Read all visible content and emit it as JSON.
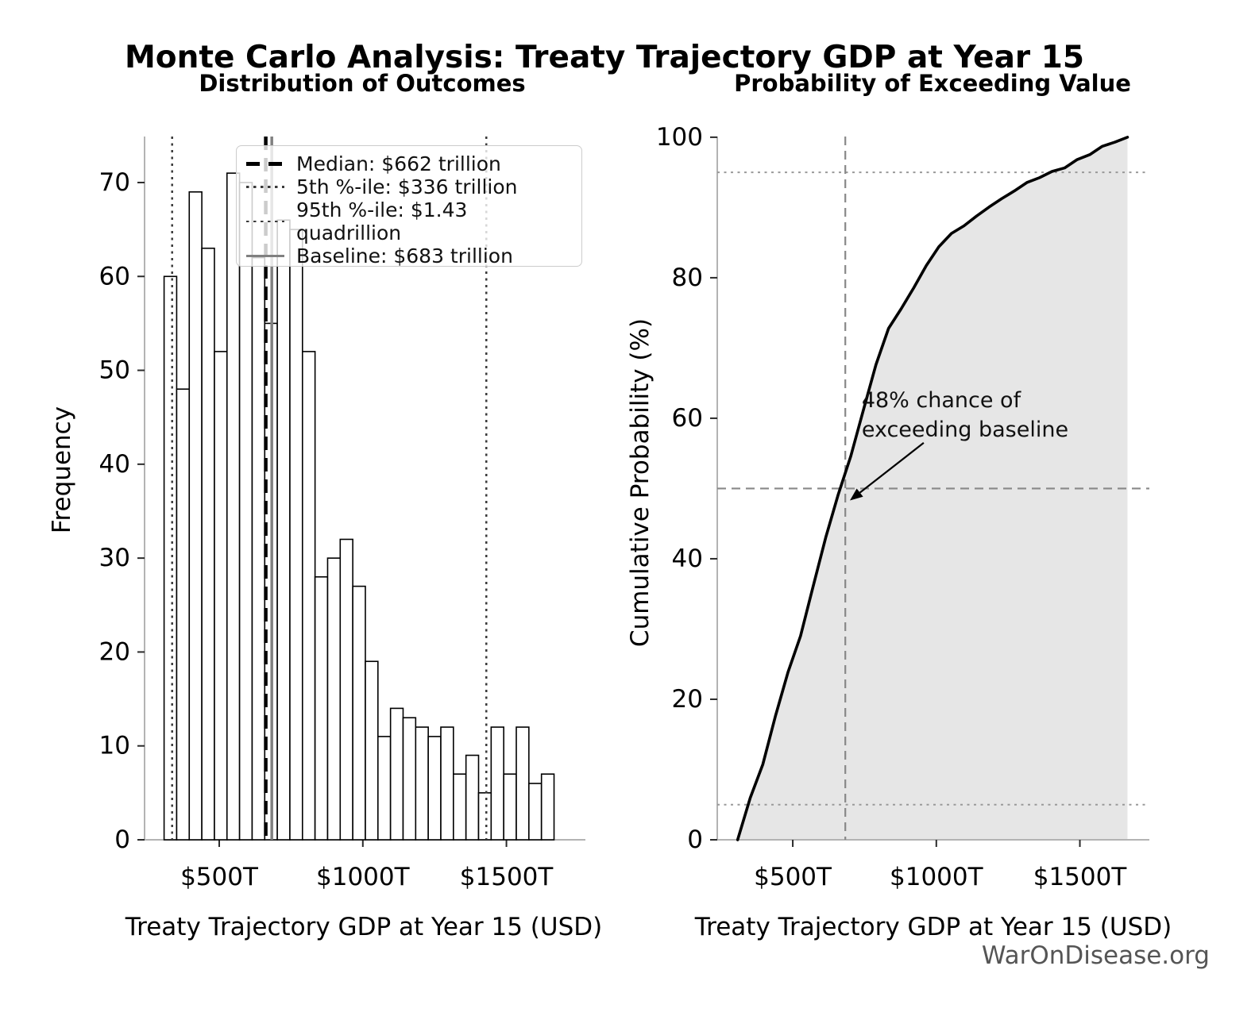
{
  "figure": {
    "title": "Monte Carlo Analysis: Treaty Trajectory GDP at Year 15",
    "watermark": "WarOnDisease.org",
    "background": "#ffffff"
  },
  "colors": {
    "bar_fill": "#ffffff",
    "bar_edge": "#000000",
    "spine": "#b3b3b3",
    "tick": "#2a2a2a",
    "curve": "#000000",
    "cdf_fill": "#e6e6e6",
    "dashed_guide": "#888888",
    "dotted_guide": "#999999",
    "dotted_dark": "#3a3a3a",
    "baseline_gray": "#808080",
    "watermark_text": "#555555"
  },
  "chart_data": [
    {
      "id": "histogram",
      "type": "bar",
      "title": "Distribution of Outcomes",
      "xlabel": "Treaty Trajectory GDP at Year 15 (USD)",
      "ylabel": "Frequency",
      "x_unit": "trillions of USD",
      "bin_start": 308,
      "bin_width": 43.8,
      "values": [
        60,
        48,
        69,
        63,
        52,
        71,
        70,
        62,
        55,
        66,
        65,
        52,
        28,
        30,
        32,
        27,
        19,
        11,
        14,
        13,
        12,
        11,
        12,
        7,
        9,
        5,
        12,
        7,
        12,
        6,
        7
      ],
      "xticks": [
        {
          "value": 500,
          "label": "$500T"
        },
        {
          "value": 1000,
          "label": "$1000T"
        },
        {
          "value": 1500,
          "label": "$1500T"
        }
      ],
      "yticks": [
        0,
        10,
        20,
        30,
        40,
        50,
        60,
        70
      ],
      "xlim": [
        240,
        1775
      ],
      "ylim": [
        0,
        74.9
      ],
      "grid": false,
      "legend_position": "upper center",
      "reference_lines": [
        {
          "name": "median",
          "value": 662,
          "style": "dashed",
          "color": "#000000",
          "width": 4.5,
          "label": "Median: $662 trillion"
        },
        {
          "name": "p5",
          "value": 336,
          "style": "dotted",
          "color": "#3a3a3a",
          "width": 2.5,
          "label": "5th %-ile: $336 trillion"
        },
        {
          "name": "p95",
          "value": 1430,
          "style": "dotted",
          "color": "#3a3a3a",
          "width": 2.5,
          "label": "95th %-ile: $1.43 quadrillion"
        },
        {
          "name": "baseline",
          "value": 683,
          "style": "solid",
          "color": "#808080",
          "width": 3.5,
          "label": "Baseline: $683 trillion"
        }
      ]
    },
    {
      "id": "cdf",
      "type": "line",
      "title": "Probability of Exceeding Value",
      "xlabel": "Treaty Trajectory GDP at Year 15 (USD)",
      "ylabel": "Cumulative Probability (%)",
      "source": "cumulative distribution of histogram samples",
      "bin_edges": [
        308,
        351.8,
        395.6,
        439.4,
        483.2,
        527,
        570.8,
        614.6,
        658.4,
        702.2,
        746,
        789.8,
        833.6,
        877.4,
        921.2,
        965,
        1008.8,
        1052.6,
        1096.4,
        1140.2,
        1184,
        1227.8,
        1271.6,
        1315.4,
        1359.2,
        1403,
        1446.8,
        1490.6,
        1534.4,
        1578.2,
        1622,
        1665.8
      ],
      "cumulative_percent": [
        0,
        5.96,
        10.72,
        17.58,
        23.83,
        29.0,
        36.05,
        43.0,
        49.16,
        54.62,
        61.17,
        67.63,
        72.79,
        75.57,
        78.55,
        81.73,
        84.41,
        86.3,
        87.39,
        88.78,
        90.07,
        91.26,
        92.35,
        93.55,
        94.24,
        95.13,
        95.63,
        96.82,
        97.52,
        98.71,
        99.3,
        100.0
      ],
      "key_points": [
        {
          "x": 336,
          "percent": 5,
          "name": "5th percentile"
        },
        {
          "x": 662,
          "percent": 50,
          "name": "median"
        },
        {
          "x": 683,
          "percent": 52,
          "name": "baseline"
        },
        {
          "x": 1430,
          "percent": 95,
          "name": "95th percentile"
        }
      ],
      "xticks": [
        {
          "value": 500,
          "label": "$500T"
        },
        {
          "value": 1000,
          "label": "$1000T"
        },
        {
          "value": 1500,
          "label": "$1500T"
        }
      ],
      "yticks": [
        0,
        20,
        40,
        60,
        80,
        100
      ],
      "xlim": [
        237,
        1742
      ],
      "ylim": [
        0,
        100.1
      ],
      "grid": false,
      "hlines": [
        {
          "value": 5,
          "style": "dotted",
          "color": "#999999",
          "width": 2
        },
        {
          "value": 50,
          "style": "dashed",
          "color": "#888888",
          "width": 2.2
        },
        {
          "value": 95,
          "style": "dotted",
          "color": "#999999",
          "width": 2
        }
      ],
      "vlines": [
        {
          "name": "baseline",
          "value": 683,
          "style": "dashed",
          "color": "#888888",
          "width": 2.2
        }
      ],
      "annotation": {
        "lines": [
          "48% chance of",
          "exceeding baseline"
        ],
        "text_at": {
          "x": 740,
          "y": 64.6
        },
        "arrow_from": {
          "x": 956,
          "y": 56.5
        },
        "arrow_to": {
          "x": 699,
          "y": 48.3
        }
      }
    }
  ]
}
